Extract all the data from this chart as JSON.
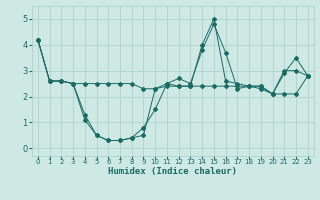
{
  "xlabel": "Humidex (Indice chaleur)",
  "ylabel": "",
  "background_color": "#cee8e4",
  "grid_color": "#aacfca",
  "line_color": "#1a6b64",
  "xlim": [
    -0.5,
    23.5
  ],
  "ylim": [
    -0.3,
    5.5
  ],
  "xticks": [
    0,
    1,
    2,
    3,
    4,
    5,
    6,
    7,
    8,
    9,
    10,
    11,
    12,
    13,
    14,
    15,
    16,
    17,
    18,
    19,
    20,
    21,
    22,
    23
  ],
  "yticks": [
    0,
    1,
    2,
    3,
    4,
    5
  ],
  "series": [
    [
      4.2,
      2.6,
      2.6,
      2.5,
      1.1,
      0.5,
      0.3,
      0.3,
      0.4,
      0.8,
      1.5,
      2.5,
      2.7,
      2.5,
      3.8,
      4.8,
      3.7,
      2.3,
      2.4,
      2.3,
      2.1,
      2.9,
      3.5,
      2.8
    ],
    [
      4.2,
      2.6,
      2.6,
      2.5,
      1.3,
      0.5,
      0.3,
      0.3,
      0.4,
      0.5,
      2.3,
      2.5,
      2.4,
      2.4,
      4.0,
      5.0,
      2.6,
      2.5,
      2.4,
      2.4,
      2.1,
      3.0,
      3.0,
      2.8
    ],
    [
      4.2,
      2.6,
      2.6,
      2.5,
      2.5,
      2.5,
      2.5,
      2.5,
      2.5,
      2.3,
      2.3,
      2.4,
      2.4,
      2.4,
      2.4,
      2.4,
      2.4,
      2.4,
      2.4,
      2.4,
      2.1,
      2.1,
      2.1,
      2.8
    ]
  ]
}
